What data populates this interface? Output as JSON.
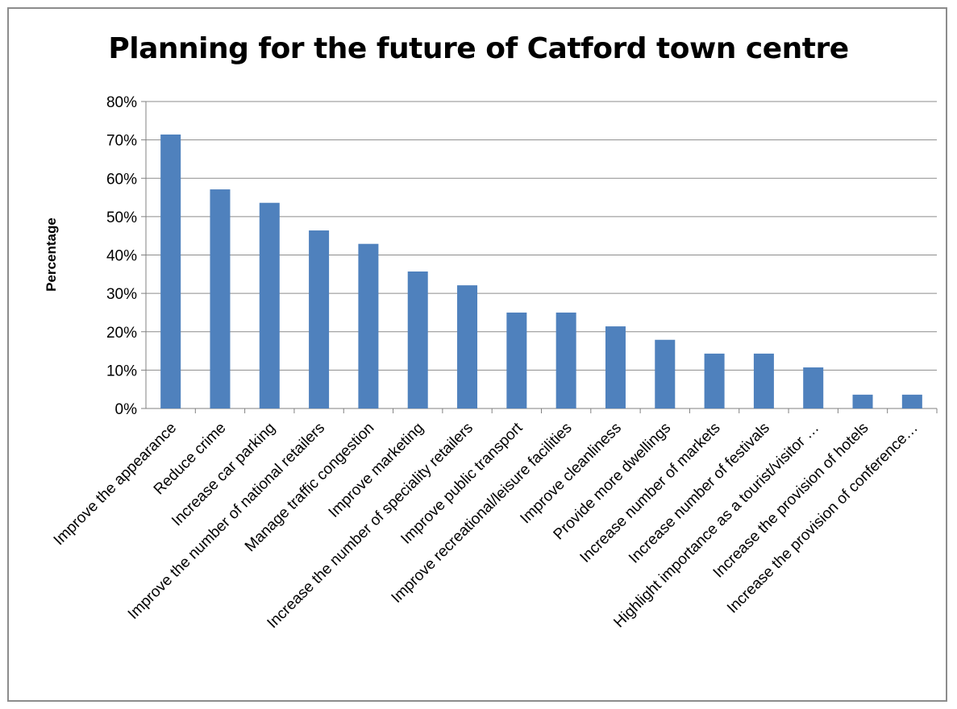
{
  "chart_data": {
    "type": "bar",
    "title": "Planning for the future of Catford town centre",
    "xlabel": "",
    "ylabel": "Percentage",
    "ylim": [
      0,
      80
    ],
    "y_tick_labels": [
      "0%",
      "10%",
      "20%",
      "30%",
      "40%",
      "50%",
      "60%",
      "70%",
      "80%"
    ],
    "grid": true,
    "bar_color": "#4f81bd",
    "categories": [
      "Improve the appearance",
      "Reduce crime",
      "Increase car parking",
      "Improve the number of national retailers",
      "Manage traffic congestion",
      "Improve marketing",
      "Increase the number of speciality retailers",
      "Improve public transport",
      "Improve recreational/leisure facilities",
      "Improve cleanliness",
      "Provide more dwellings",
      "Increase number of markets",
      "Increase number of festivals",
      "Highlight importance as a tourist/visitor …",
      "Increase the provision of hotels",
      "Increase the provision of conference…"
    ],
    "values": [
      71.4,
      57.1,
      53.6,
      46.4,
      42.9,
      35.7,
      32.1,
      25.0,
      25.0,
      21.4,
      17.9,
      14.3,
      14.3,
      10.7,
      3.6,
      3.6
    ]
  }
}
